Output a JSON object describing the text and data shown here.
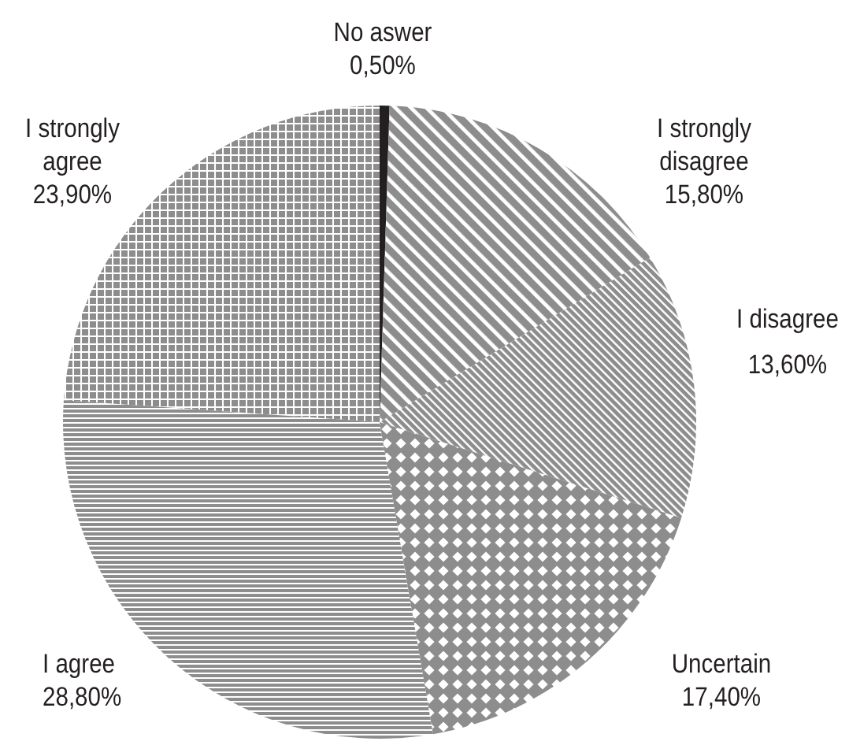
{
  "chart_data": {
    "type": "pie",
    "categories": [
      "No aswer",
      "I strongly disagree",
      "I disagree",
      "Uncertain",
      "I agree",
      "I strongly agree"
    ],
    "values": [
      0.5,
      15.8,
      13.6,
      17.4,
      28.8,
      23.9
    ],
    "colors": [
      "#231f20",
      "#8d8d8d",
      "#8d8d8d",
      "#8d8d8d",
      "#8d8d8d",
      "#8d8d8d"
    ],
    "value_labels": [
      "0,50%",
      "15,80%",
      "13,60%",
      "17,40%",
      "28,80%",
      "23,90%"
    ]
  }
}
